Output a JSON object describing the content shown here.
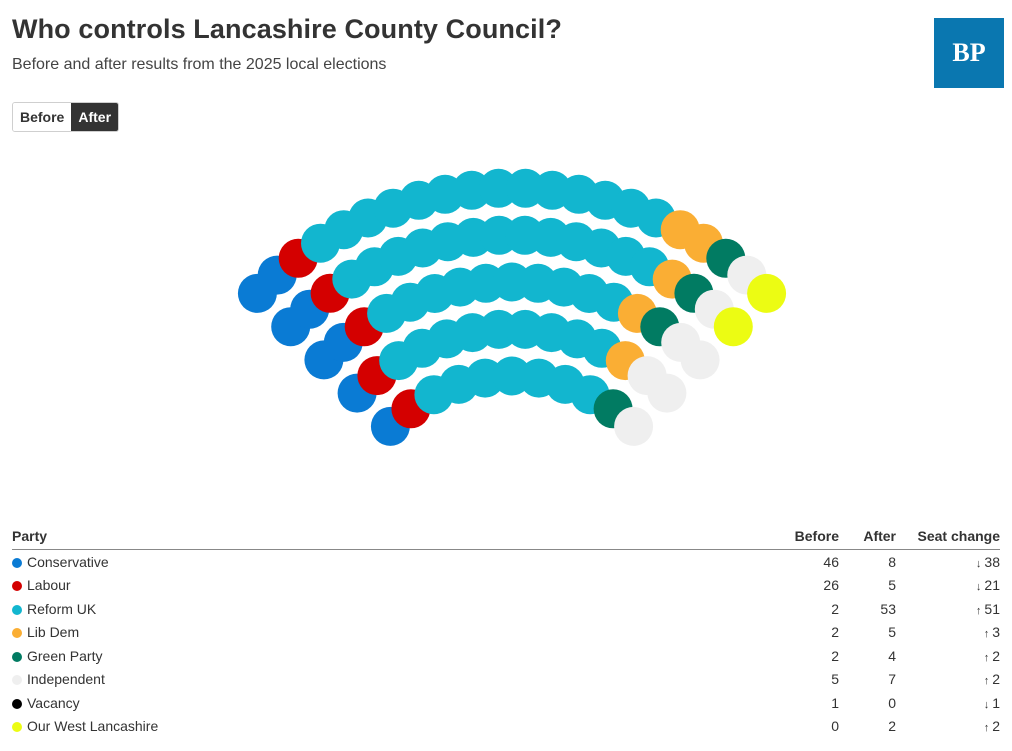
{
  "header": {
    "title": "Who controls Lancashire County Council?",
    "subtitle": "Before and after results from the 2025 local elections",
    "logo_text": "BP"
  },
  "toggle": {
    "options": [
      "Before",
      "After"
    ],
    "selected": "After"
  },
  "table": {
    "headers": {
      "party": "Party",
      "before": "Before",
      "after": "After",
      "change": "Seat change"
    }
  },
  "chart_data": {
    "type": "parliament",
    "selected_view": "After",
    "total_seats": 84,
    "parties": [
      {
        "name": "Conservative",
        "color": "#0a7bd4",
        "before": 46,
        "after": 8,
        "change": "38",
        "direction": "down"
      },
      {
        "name": "Labour",
        "color": "#d40000",
        "before": 26,
        "after": 5,
        "change": "21",
        "direction": "down"
      },
      {
        "name": "Reform UK",
        "color": "#12b6cf",
        "before": 2,
        "after": 53,
        "change": "51",
        "direction": "up"
      },
      {
        "name": "Lib Dem",
        "color": "#faae34",
        "before": 2,
        "after": 5,
        "change": "3",
        "direction": "up"
      },
      {
        "name": "Green Party",
        "color": "#017b62",
        "before": 2,
        "after": 4,
        "change": "2",
        "direction": "up"
      },
      {
        "name": "Independent",
        "color": "#efefef",
        "before": 5,
        "after": 7,
        "change": "2",
        "direction": "up"
      },
      {
        "name": "Vacancy",
        "color": "#000000",
        "before": 1,
        "after": 0,
        "change": "1",
        "direction": "down"
      },
      {
        "name": "Our West Lancashire",
        "color": "#ecfc13",
        "before": 0,
        "after": 2,
        "change": "2",
        "direction": "up"
      }
    ]
  }
}
